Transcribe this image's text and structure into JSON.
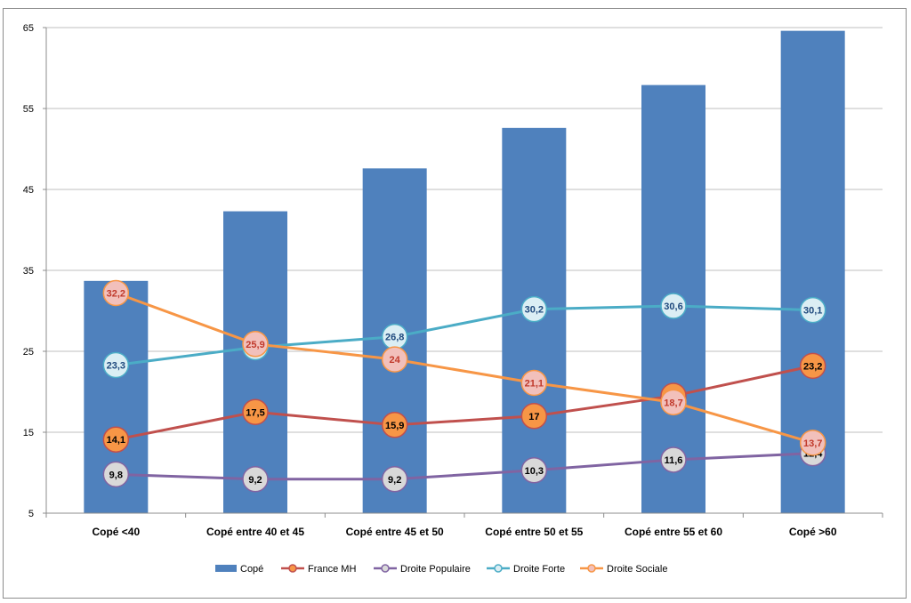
{
  "chart_data": {
    "type": "bar",
    "categories": [
      "Copé <40",
      "Copé entre 40 et 45",
      "Copé entre 45 et 50",
      "Copé entre 50 et 55",
      "Copé entre 55 et 60",
      "Copé >60"
    ],
    "ylim": [
      5,
      65
    ],
    "yticks": [
      5,
      15,
      25,
      35,
      45,
      55,
      65
    ],
    "grid": true,
    "legend_position": "bottom",
    "bar_series": {
      "name": "Copé",
      "color": "#4f81bd",
      "values": [
        33.7,
        42.3,
        47.6,
        52.6,
        57.9,
        64.6
      ]
    },
    "line_series": [
      {
        "name": "France MH",
        "line_color": "#c0504d",
        "marker_fill": "#f79646",
        "marker_edge": "#c0504d",
        "label_color": "#000000",
        "values": [
          14.1,
          17.5,
          15.9,
          17,
          19.5,
          23.2
        ],
        "labels": [
          "14,1",
          "17,5",
          "15,9",
          "17",
          "19,5",
          "23,2"
        ]
      },
      {
        "name": "Droite Populaire",
        "line_color": "#8064a2",
        "marker_fill": "#d9d9d9",
        "marker_edge": "#8064a2",
        "label_color": "#000000",
        "values": [
          9.8,
          9.2,
          9.2,
          10.3,
          11.6,
          12.4
        ],
        "labels": [
          "9,8",
          "9,2",
          "9,2",
          "10,3",
          "11,6",
          "12,4"
        ]
      },
      {
        "name": "Droite Forte",
        "line_color": "#4bacc6",
        "marker_fill": "#dbeef4",
        "marker_edge": "#4bacc6",
        "label_color": "#1f497d",
        "values": [
          23.3,
          25.5,
          26.8,
          30.2,
          30.6,
          30.1
        ],
        "labels": [
          "23,3",
          "25,5",
          "26,8",
          "30,2",
          "30,6",
          "30,1"
        ]
      },
      {
        "name": "Droite Sociale",
        "line_color": "#f79646",
        "marker_fill": "#f2c0bb",
        "marker_edge": "#f79646",
        "label_color": "#c0392b",
        "values": [
          32.2,
          25.9,
          24,
          21.1,
          18.7,
          13.7
        ],
        "labels": [
          "32,2",
          "25,9",
          "24",
          "21,1",
          "18,7",
          "13,7"
        ]
      }
    ]
  }
}
